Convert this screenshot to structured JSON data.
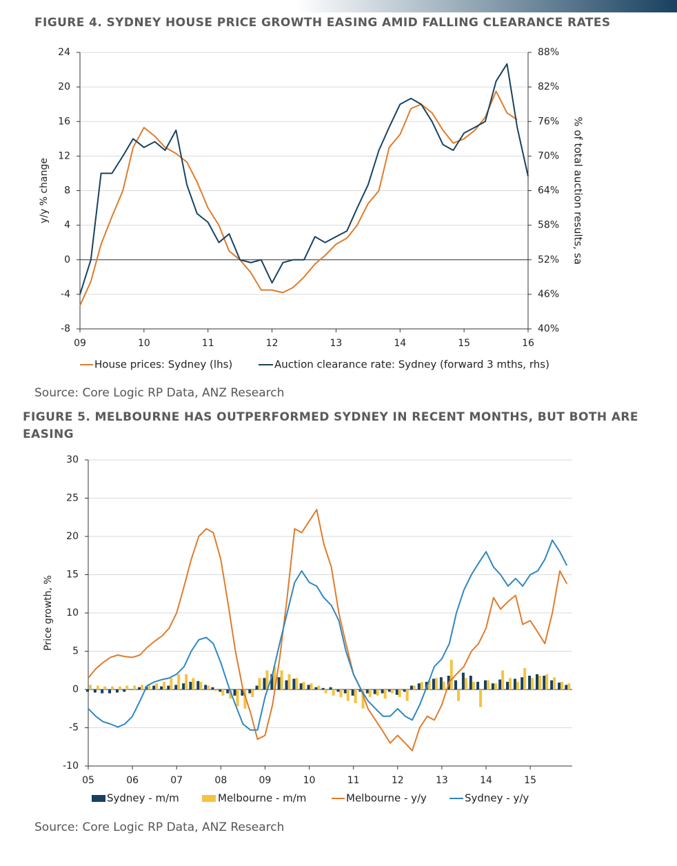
{
  "chart_data": [
    {
      "type": "line",
      "title": "FIGURE 4. SYDNEY HOUSE PRICE GROWTH EASING AMID FALLING CLEARANCE RATES",
      "source": "Source: Core Logic RP Data, ANZ Research",
      "ylabel": "y/y % change",
      "y2label": "% of total auction results, sa",
      "x": [
        9,
        9.17,
        9.33,
        9.5,
        9.67,
        9.83,
        10,
        10.17,
        10.33,
        10.5,
        10.67,
        10.83,
        11,
        11.17,
        11.33,
        11.5,
        11.67,
        11.83,
        12,
        12.17,
        12.33,
        12.5,
        12.67,
        12.83,
        13,
        13.17,
        13.33,
        13.5,
        13.67,
        13.83,
        14,
        14.17,
        14.33,
        14.5,
        14.67,
        14.83,
        15,
        15.17,
        15.33,
        15.5,
        15.67,
        15.83,
        16
      ],
      "xlim": [
        9,
        16
      ],
      "xticks": [
        {
          "value": 9,
          "label": "09"
        },
        10,
        11,
        12,
        13,
        14,
        15,
        16
      ],
      "ylim": [
        -8,
        24
      ],
      "yticks": [
        -8,
        -4,
        0,
        4,
        8,
        12,
        16,
        20,
        24
      ],
      "y2lim": [
        40,
        88
      ],
      "y2ticks": [
        {
          "value": 40,
          "label": "40%"
        },
        {
          "value": 46,
          "label": "46%"
        },
        {
          "value": 52,
          "label": "52%"
        },
        {
          "value": 58,
          "label": "58%"
        },
        {
          "value": 64,
          "label": "64%"
        },
        {
          "value": 70,
          "label": "70%"
        },
        {
          "value": 76,
          "label": "76%"
        },
        {
          "value": 82,
          "label": "82%"
        },
        {
          "value": 88,
          "label": "88%"
        }
      ],
      "grid": true,
      "series": [
        {
          "name": "House prices: Sydney (lhs)",
          "color": "#e07b2a",
          "values": [
            -5.3,
            -2.5,
            1.8,
            5,
            8,
            13,
            15.3,
            14.3,
            13,
            12.3,
            11.3,
            9,
            6,
            4,
            1,
            0,
            -1.5,
            -3.5,
            -3.5,
            -3.8,
            -3.2,
            -2,
            -0.5,
            0.5,
            1.8,
            2.5,
            4,
            6.5,
            8,
            13,
            14.5,
            17.5,
            18,
            17,
            15,
            13.5,
            14,
            15,
            16.5,
            19.5,
            17,
            16.2,
            null
          ]
        },
        {
          "name": "Auction clearance rate: Sydney (forward 3 mths, rhs)",
          "color": "#17415f",
          "axis": "y2",
          "values": [
            46,
            52,
            67,
            67,
            70,
            73,
            71.5,
            72.5,
            71,
            74.5,
            65,
            60,
            58.5,
            55,
            56.5,
            52,
            51.5,
            52,
            48,
            51.5,
            52,
            52,
            56,
            55,
            56,
            57,
            61,
            65,
            71,
            75,
            79,
            80,
            79,
            76,
            72,
            71,
            74,
            75,
            76,
            83,
            86,
            75,
            66.5
          ]
        }
      ]
    },
    {
      "type": "combo",
      "title": "FIGURE 5. MELBOURNE HAS OUTPERFORMED SYDNEY IN RECENT MONTHS, BUT BOTH ARE EASING",
      "source": "Source: Core Logic RP Data, ANZ Research",
      "ylabel": "Price growth,  %",
      "x": [
        5,
        5.17,
        5.33,
        5.5,
        5.67,
        5.83,
        6,
        6.17,
        6.33,
        6.5,
        6.67,
        6.83,
        7,
        7.17,
        7.33,
        7.5,
        7.67,
        7.83,
        8,
        8.17,
        8.33,
        8.5,
        8.67,
        8.83,
        9,
        9.17,
        9.33,
        9.5,
        9.67,
        9.83,
        10,
        10.17,
        10.33,
        10.5,
        10.67,
        10.83,
        11,
        11.17,
        11.33,
        11.5,
        11.67,
        11.83,
        12,
        12.17,
        12.33,
        12.5,
        12.67,
        12.83,
        13,
        13.17,
        13.33,
        13.5,
        13.67,
        13.83,
        14,
        14.17,
        14.33,
        14.5,
        14.67,
        14.83,
        15,
        15.17,
        15.33,
        15.5,
        15.67,
        15.83
      ],
      "xlim": [
        5,
        15.95
      ],
      "xticks": [
        {
          "value": 5,
          "label": "05"
        },
        {
          "value": 6,
          "label": "06"
        },
        {
          "value": 7,
          "label": "07"
        },
        {
          "value": 8,
          "label": "08"
        },
        {
          "value": 9,
          "label": "09"
        },
        10,
        11,
        12,
        13,
        14,
        15
      ],
      "ylim": [
        -10,
        30
      ],
      "yticks": [
        -10,
        -5,
        0,
        5,
        10,
        15,
        20,
        25,
        30
      ],
      "grid": true,
      "series": [
        {
          "name": "Sydney - m/m",
          "color": "#17415f",
          "kind": "bar",
          "values": [
            -0.3,
            -0.4,
            -0.5,
            -0.5,
            -0.4,
            -0.3,
            0,
            0.3,
            0.4,
            0.5,
            0.4,
            0.5,
            0.6,
            0.8,
            1,
            1.1,
            0.6,
            0.3,
            -0.3,
            -0.5,
            -0.8,
            -0.8,
            -0.5,
            0.5,
            1.5,
            2,
            1.6,
            1.2,
            1.4,
            0.8,
            0.6,
            0.3,
            0.2,
            0.3,
            -0.3,
            -0.5,
            -0.8,
            -0.3,
            -0.5,
            -0.6,
            -0.5,
            -0.3,
            -0.7,
            -0.3,
            0.5,
            0.8,
            1,
            1.4,
            1.6,
            1.8,
            1.2,
            2.2,
            1.8,
            1.0,
            1.2,
            0.8,
            1.3,
            1.0,
            1.4,
            1.6,
            1.8,
            2.0,
            1.8,
            1.2,
            0.9,
            0.6
          ]
        },
        {
          "name": "Melbourne - m/m",
          "color": "#f5c342",
          "kind": "bar",
          "values": [
            0.6,
            0.5,
            0.4,
            0.4,
            0.4,
            0.5,
            0.5,
            0.6,
            0.7,
            0.8,
            1,
            1.5,
            2,
            2,
            1.5,
            1,
            0.5,
            -0.2,
            -0.8,
            -1.2,
            -2.2,
            -2.5,
            -1,
            1.5,
            2.5,
            3,
            2.5,
            2,
            1.5,
            1,
            0.8,
            0.5,
            -0.5,
            -0.8,
            -1,
            -1.5,
            -1.8,
            -2.5,
            -1,
            -0.8,
            -1.2,
            -0.5,
            -1,
            -1.5,
            0.5,
            1,
            1.2,
            1.5,
            1,
            3.9,
            -1.5,
            1.5,
            1.0,
            -2.3,
            1.2,
            0.8,
            2.5,
            1.5,
            1.0,
            2.8,
            1.5,
            1.8,
            2.0,
            1.6,
            1.0,
            0.8
          ]
        },
        {
          "name": "Melbourne - y/y",
          "color": "#e07b2a",
          "kind": "line",
          "values": [
            1.5,
            2.7,
            3.5,
            4.2,
            4.5,
            4.3,
            4.2,
            4.5,
            5.5,
            6.3,
            7,
            8,
            10,
            13.5,
            17,
            20,
            21,
            20.5,
            17,
            11,
            5,
            0,
            -3,
            -6.5,
            -6,
            -2,
            4,
            12,
            21,
            20.5,
            22,
            23.5,
            19,
            16,
            10,
            6,
            2,
            0,
            -2.5,
            -4,
            -5.5,
            -7,
            -6,
            -7,
            -8,
            -5,
            -3.5,
            -4,
            -2,
            1,
            2,
            3,
            5,
            6,
            8,
            12,
            10.5,
            11.5,
            12.3,
            8.5,
            9,
            7.5,
            6,
            10,
            15.5,
            13.8
          ]
        },
        {
          "name": "Sydney - y/y",
          "color": "#2e86c1",
          "kind": "line",
          "values": [
            -2.5,
            -3.5,
            -4.2,
            -4.5,
            -4.9,
            -4.5,
            -3.5,
            -1.5,
            0.5,
            1,
            1.3,
            1.5,
            2,
            3,
            5,
            6.5,
            6.8,
            6,
            3.5,
            0.5,
            -2,
            -4.5,
            -5.3,
            -5.3,
            -1,
            2,
            6,
            10,
            14,
            15.5,
            14,
            13.5,
            12,
            11,
            9,
            5,
            2,
            0,
            -1.5,
            -2.5,
            -3.5,
            -3.5,
            -2.5,
            -3.5,
            -4,
            -2,
            0.5,
            3,
            4,
            6,
            10,
            13,
            15,
            16.5,
            18,
            16,
            15,
            13.5,
            14.5,
            13.5,
            15,
            15.5,
            17,
            19.5,
            18,
            16.2
          ]
        }
      ]
    }
  ]
}
